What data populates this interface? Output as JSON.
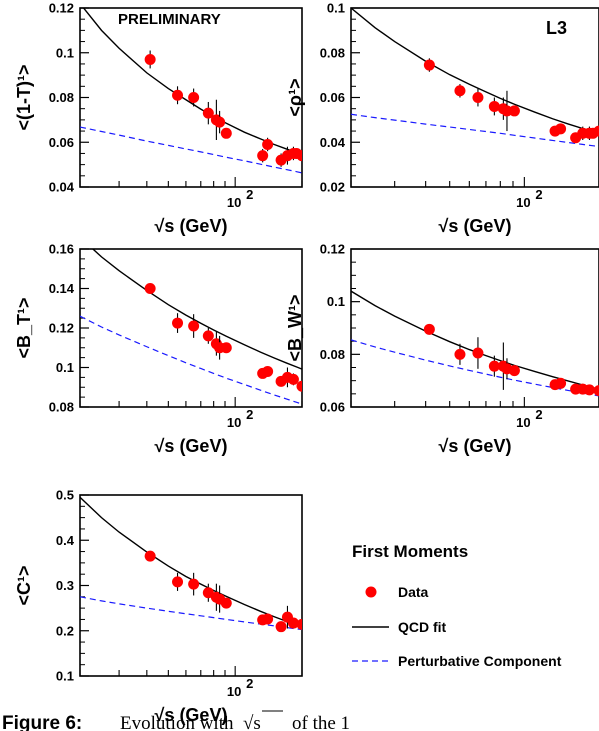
{
  "chart_data": [
    {
      "type": "scatter",
      "ylabel": "<(1-T)¹>",
      "xlabel": "√s  (GeV)",
      "ylim": [
        0.04,
        0.12
      ],
      "yticks": [
        "0.04",
        "0.06",
        "0.08",
        "0.1",
        "0.12"
      ],
      "xtick_label": "10",
      "xtick_exp": "2",
      "annotation": "PRELIMINARY",
      "series": [
        {
          "name": "Data",
          "points": [
            {
              "x": 41.4,
              "y": 0.097,
              "err": 0.004
            },
            {
              "x": 55,
              "y": 0.081,
              "err": 0.004
            },
            {
              "x": 65,
              "y": 0.08,
              "err": 0.004
            },
            {
              "x": 75.7,
              "y": 0.073,
              "err": 0.005
            },
            {
              "x": 82.3,
              "y": 0.07,
              "err": 0.009
            },
            {
              "x": 85.1,
              "y": 0.069,
              "err": 0.005
            },
            {
              "x": 91.2,
              "y": 0.064,
              "err": 0.001
            },
            {
              "x": 133,
              "y": 0.054,
              "err": 0.003
            },
            {
              "x": 140,
              "y": 0.059,
              "err": 0.003
            },
            {
              "x": 161,
              "y": 0.052,
              "err": 0.003
            },
            {
              "x": 172,
              "y": 0.054,
              "err": 0.004
            },
            {
              "x": 183,
              "y": 0.055,
              "err": 0.003
            },
            {
              "x": 189,
              "y": 0.055,
              "err": 0.002
            },
            {
              "x": 200,
              "y": 0.054,
              "err": 0.002
            }
          ]
        },
        {
          "name": "QCD fit",
          "x": [
            20,
            25,
            30,
            40,
            50,
            60,
            70,
            80,
            91.2,
            110,
            130,
            150,
            170,
            190,
            200
          ],
          "y": [
            0.122,
            0.11,
            0.102,
            0.091,
            0.084,
            0.079,
            0.0748,
            0.0715,
            0.0685,
            0.0645,
            0.0615,
            0.059,
            0.057,
            0.0553,
            0.0546
          ]
        },
        {
          "name": "Perturbative Component",
          "x": [
            20,
            25,
            30,
            40,
            50,
            60,
            70,
            80,
            91.2,
            110,
            130,
            150,
            170,
            190,
            200
          ],
          "y": [
            0.0668,
            0.0648,
            0.0632,
            0.0605,
            0.0586,
            0.057,
            0.0557,
            0.0545,
            0.0533,
            0.0517,
            0.0502,
            0.0489,
            0.0478,
            0.0468,
            0.0463
          ]
        }
      ]
    },
    {
      "type": "scatter",
      "ylabel": "<ρ¹>",
      "xlabel": "√s  (GeV)",
      "ylim": [
        0.02,
        0.1
      ],
      "yticks": [
        "0.02",
        "0.04",
        "0.06",
        "0.08",
        "0.1"
      ],
      "xtick_label": "10",
      "xtick_exp": "2",
      "annotation": "L3",
      "series": [
        {
          "name": "Data",
          "points": [
            {
              "x": 41.4,
              "y": 0.0745,
              "err": 0.003
            },
            {
              "x": 55,
              "y": 0.063,
              "err": 0.003
            },
            {
              "x": 65,
              "y": 0.06,
              "err": 0.004
            },
            {
              "x": 75.7,
              "y": 0.056,
              "err": 0.004
            },
            {
              "x": 82.3,
              "y": 0.055,
              "err": 0.005
            },
            {
              "x": 85.1,
              "y": 0.054,
              "err": 0.009
            },
            {
              "x": 91.2,
              "y": 0.054,
              "err": 0.001
            },
            {
              "x": 133,
              "y": 0.045,
              "err": 0.002
            },
            {
              "x": 140,
              "y": 0.046,
              "err": 0.002
            },
            {
              "x": 161,
              "y": 0.042,
              "err": 0.002
            },
            {
              "x": 172,
              "y": 0.044,
              "err": 0.003
            },
            {
              "x": 183,
              "y": 0.044,
              "err": 0.003
            },
            {
              "x": 189,
              "y": 0.044,
              "err": 0.002
            },
            {
              "x": 200,
              "y": 0.045,
              "err": 0.002
            }
          ]
        },
        {
          "name": "QCD fit",
          "x": [
            20,
            25,
            30,
            40,
            50,
            60,
            70,
            80,
            91.2,
            110,
            130,
            150,
            170,
            190,
            200
          ],
          "y": [
            0.1,
            0.0912,
            0.085,
            0.0762,
            0.0702,
            0.0659,
            0.0625,
            0.0596,
            0.057,
            0.0535,
            0.0505,
            0.0482,
            0.0463,
            0.0448,
            0.0441
          ]
        },
        {
          "name": "Perturbative Component",
          "x": [
            20,
            25,
            30,
            40,
            50,
            60,
            70,
            80,
            91.2,
            110,
            130,
            150,
            170,
            190,
            200
          ],
          "y": [
            0.0525,
            0.051,
            0.0499,
            0.0481,
            0.0468,
            0.0457,
            0.0448,
            0.044,
            0.0431,
            0.0419,
            0.0408,
            0.0399,
            0.0391,
            0.0384,
            0.0381
          ]
        }
      ]
    },
    {
      "type": "scatter",
      "ylabel": "<B_T¹>",
      "xlabel": "√s  (GeV)",
      "ylim": [
        0.08,
        0.16
      ],
      "yticks": [
        "0.08",
        "0.1",
        "0.12",
        "0.14",
        "0.16"
      ],
      "xtick_label": "10",
      "xtick_exp": "2",
      "series": [
        {
          "name": "Data",
          "points": [
            {
              "x": 41.4,
              "y": 0.14,
              "err": 0.002
            },
            {
              "x": 55,
              "y": 0.1225,
              "err": 0.005
            },
            {
              "x": 65,
              "y": 0.121,
              "err": 0.006
            },
            {
              "x": 75.7,
              "y": 0.116,
              "err": 0.004
            },
            {
              "x": 82.3,
              "y": 0.112,
              "err": 0.006
            },
            {
              "x": 85.1,
              "y": 0.11,
              "err": 0.006
            },
            {
              "x": 91.2,
              "y": 0.11,
              "err": 0.001
            },
            {
              "x": 133,
              "y": 0.097,
              "err": 0.002
            },
            {
              "x": 140,
              "y": 0.098,
              "err": 0.002
            },
            {
              "x": 161,
              "y": 0.093,
              "err": 0.002
            },
            {
              "x": 172,
              "y": 0.095,
              "err": 0.005
            },
            {
              "x": 183,
              "y": 0.094,
              "err": 0.003
            },
            {
              "x": 200,
              "y": 0.0905,
              "err": 0.002
            }
          ]
        },
        {
          "name": "QCD fit",
          "x": [
            20,
            25,
            30,
            40,
            50,
            60,
            70,
            80,
            91.2,
            110,
            130,
            150,
            170,
            190,
            200
          ],
          "y": [
            0.166,
            0.156,
            0.149,
            0.139,
            0.1318,
            0.1265,
            0.1224,
            0.119,
            0.1158,
            0.1115,
            0.1078,
            0.1048,
            0.1023,
            0.1002,
            0.0992
          ]
        },
        {
          "name": "Perturbative Component",
          "x": [
            20,
            25,
            30,
            40,
            50,
            60,
            70,
            80,
            91.2,
            110,
            130,
            150,
            170,
            190,
            200
          ],
          "y": [
            0.126,
            0.1205,
            0.1165,
            0.1105,
            0.106,
            0.1024,
            0.0995,
            0.097,
            0.0946,
            0.0914,
            0.0885,
            0.0861,
            0.0841,
            0.0823,
            0.0815
          ]
        }
      ]
    },
    {
      "type": "scatter",
      "ylabel": "<B_W¹>",
      "xlabel": "√s  (GeV)",
      "ylim": [
        0.06,
        0.12
      ],
      "yticks": [
        "0.06",
        "0.08",
        "0.1",
        "0.12"
      ],
      "xtick_label": "10",
      "xtick_exp": "2",
      "series": [
        {
          "name": "Data",
          "points": [
            {
              "x": 41.4,
              "y": 0.0895,
              "err": 0.002
            },
            {
              "x": 55,
              "y": 0.08,
              "err": 0.004
            },
            {
              "x": 65,
              "y": 0.0805,
              "err": 0.006
            },
            {
              "x": 75.7,
              "y": 0.0755,
              "err": 0.004
            },
            {
              "x": 82.3,
              "y": 0.0755,
              "err": 0.009
            },
            {
              "x": 85.1,
              "y": 0.0745,
              "err": 0.004
            },
            {
              "x": 91.2,
              "y": 0.0738,
              "err": 0.001
            },
            {
              "x": 133,
              "y": 0.0685,
              "err": 0.0015
            },
            {
              "x": 140,
              "y": 0.069,
              "err": 0.0015
            },
            {
              "x": 161,
              "y": 0.0668,
              "err": 0.0015
            },
            {
              "x": 172,
              "y": 0.0668,
              "err": 0.002
            },
            {
              "x": 183,
              "y": 0.0665,
              "err": 0.0015
            },
            {
              "x": 200,
              "y": 0.0662,
              "err": 0.0012
            }
          ]
        },
        {
          "name": "QCD fit",
          "x": [
            20,
            25,
            30,
            40,
            50,
            60,
            70,
            80,
            91.2,
            110,
            130,
            150,
            170,
            190,
            200
          ],
          "y": [
            0.104,
            0.0985,
            0.0945,
            0.0888,
            0.0848,
            0.0818,
            0.0795,
            0.0776,
            0.0758,
            0.0735,
            0.0715,
            0.0699,
            0.0685,
            0.0673,
            0.0668
          ]
        },
        {
          "name": "Perturbative Component",
          "x": [
            20,
            25,
            30,
            40,
            50,
            60,
            70,
            80,
            91.2,
            110,
            130,
            150,
            170,
            190,
            200
          ],
          "y": [
            0.0855,
            0.0828,
            0.0808,
            0.0778,
            0.0756,
            0.0739,
            0.0725,
            0.0713,
            0.0702,
            0.0687,
            0.0674,
            0.0663,
            0.0654,
            0.0646,
            0.0642
          ]
        }
      ]
    },
    {
      "type": "scatter",
      "ylabel": "<C¹>",
      "xlabel": "√s  (GeV)",
      "ylim": [
        0.1,
        0.5
      ],
      "yticks": [
        "0.1",
        "0.2",
        "0.3",
        "0.4",
        "0.5"
      ],
      "xtick_label": "10",
      "xtick_exp": "2",
      "series": [
        {
          "name": "Data",
          "points": [
            {
              "x": 41.4,
              "y": 0.365,
              "err": 0.007
            },
            {
              "x": 55,
              "y": 0.308,
              "err": 0.02
            },
            {
              "x": 65,
              "y": 0.303,
              "err": 0.025
            },
            {
              "x": 75.7,
              "y": 0.284,
              "err": 0.02
            },
            {
              "x": 82.3,
              "y": 0.274,
              "err": 0.03
            },
            {
              "x": 85.1,
              "y": 0.27,
              "err": 0.03
            },
            {
              "x": 91.2,
              "y": 0.261,
              "err": 0.002
            },
            {
              "x": 133,
              "y": 0.224,
              "err": 0.01
            },
            {
              "x": 140,
              "y": 0.226,
              "err": 0.008
            },
            {
              "x": 161,
              "y": 0.209,
              "err": 0.01
            },
            {
              "x": 172,
              "y": 0.23,
              "err": 0.025
            },
            {
              "x": 183,
              "y": 0.217,
              "err": 0.01
            },
            {
              "x": 200,
              "y": 0.214,
              "err": 0.008
            }
          ]
        },
        {
          "name": "QCD fit",
          "x": [
            20,
            25,
            30,
            40,
            50,
            60,
            70,
            80,
            91.2,
            110,
            130,
            150,
            170,
            190,
            200
          ],
          "y": [
            0.495,
            0.45,
            0.418,
            0.374,
            0.343,
            0.32,
            0.303,
            0.289,
            0.276,
            0.258,
            0.243,
            0.231,
            0.221,
            0.213,
            0.209
          ]
        },
        {
          "name": "Perturbative Component",
          "x": [
            20,
            25,
            30,
            40,
            50,
            60,
            70,
            80,
            91.2,
            110,
            130,
            150,
            170,
            190,
            200
          ],
          "y": [
            0.275,
            0.266,
            0.2595,
            0.25,
            0.243,
            0.2375,
            0.233,
            0.229,
            0.225,
            0.2195,
            0.2148,
            0.2108,
            0.2072,
            0.204,
            0.2027
          ]
        }
      ]
    }
  ],
  "legend": {
    "title": "First Moments",
    "items": [
      {
        "label": "Data",
        "color": "#ff0000"
      },
      {
        "label": "QCD fit",
        "color": "#000000"
      },
      {
        "label": "Perturbative Component",
        "color": "#1a1aff"
      }
    ]
  },
  "caption": {
    "fig": "Figure 6:",
    "text": "Evolution with",
    "sqrt_s": "√s",
    "rest": "of the 1"
  },
  "colors": {
    "data": "#ff0000",
    "fit": "#000000",
    "pert": "#1a1aff"
  }
}
